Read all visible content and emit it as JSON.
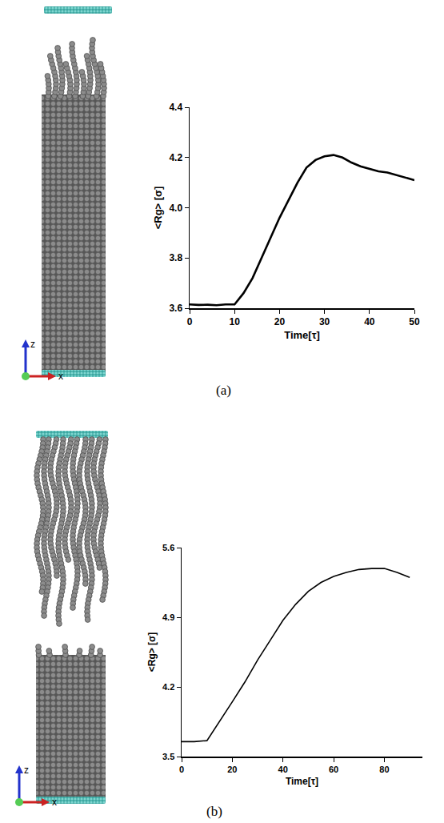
{
  "chart_data": [
    {
      "type": "line",
      "xlabel": "Time[τ]",
      "ylabel": "<Rg> [σ]",
      "color": "#000000",
      "x": [
        0,
        2,
        4,
        6,
        8,
        10,
        12,
        14,
        16,
        18,
        20,
        22,
        24,
        26,
        28,
        30,
        32,
        34,
        36,
        38,
        40,
        42,
        44,
        46,
        48,
        50
      ],
      "values": [
        3.615,
        3.613,
        3.614,
        3.612,
        3.615,
        3.615,
        3.66,
        3.72,
        3.8,
        3.88,
        3.96,
        4.03,
        4.1,
        4.16,
        4.19,
        4.205,
        4.21,
        4.2,
        4.18,
        4.165,
        4.155,
        4.145,
        4.14,
        4.13,
        4.12,
        4.11
      ],
      "xlim": [
        0,
        50
      ],
      "xticks": [
        0,
        10,
        20,
        30,
        40,
        50
      ],
      "ylim": [
        3.6,
        4.4
      ],
      "yticks": [
        3.6,
        3.8,
        {
          "value": 4,
          "label": "4.0"
        },
        4.2,
        4.4
      ]
    },
    {
      "type": "line",
      "xlabel": "Time[τ]",
      "ylabel": "<Rg> [σ]",
      "color": "#000000",
      "x": [
        0,
        5,
        10,
        15,
        20,
        25,
        30,
        35,
        40,
        45,
        50,
        55,
        60,
        65,
        70,
        75,
        80,
        85,
        90
      ],
      "values": [
        3.65,
        3.65,
        3.66,
        3.85,
        4.05,
        4.25,
        4.47,
        4.67,
        4.87,
        5.03,
        5.16,
        5.25,
        5.31,
        5.35,
        5.38,
        5.39,
        5.39,
        5.35,
        5.3
      ],
      "xlim": [
        0,
        95
      ],
      "xticks": [
        0,
        20,
        40,
        60,
        80
      ],
      "ylim": [
        3.5,
        5.6
      ],
      "yticks": [
        3.5,
        4.2,
        4.9,
        5.6
      ]
    }
  ],
  "panels": [
    {
      "label": "(a)",
      "snapshot_axes": [
        "z",
        "x"
      ]
    },
    {
      "label": "(b)",
      "snapshot_axes": [
        "z",
        "x"
      ]
    }
  ]
}
